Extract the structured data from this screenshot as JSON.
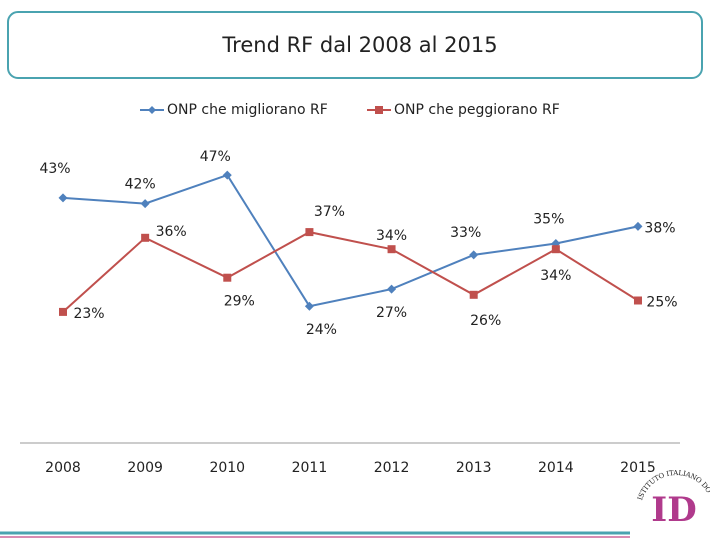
{
  "chart_data": {
    "type": "line",
    "title": "Trend RF dal 2008 al 2015",
    "categories": [
      "2008",
      "2009",
      "2010",
      "2011",
      "2012",
      "2013",
      "2014",
      "2015"
    ],
    "series": [
      {
        "name": "ONP che migliorano RF",
        "color": "#4f81bd",
        "values": [
          43,
          42,
          47,
          24,
          27,
          33,
          35,
          38
        ],
        "value_labels": [
          "43%",
          "42%",
          "47%",
          "24%",
          "27%",
          "33%",
          "35%",
          "38%"
        ]
      },
      {
        "name": "ONP che peggiorano RF",
        "color": "#c0504d",
        "values": [
          23,
          36,
          29,
          37,
          34,
          26,
          34,
          25
        ],
        "value_labels": [
          "23%",
          "36%",
          "29%",
          "37%",
          "34%",
          "26%",
          "34%",
          "25%"
        ]
      }
    ],
    "ylim": [
      0,
      50
    ],
    "legend": "top"
  },
  "logo": {
    "text": "ISTITUTO ITALIANO DO",
    "mark": "ID"
  }
}
